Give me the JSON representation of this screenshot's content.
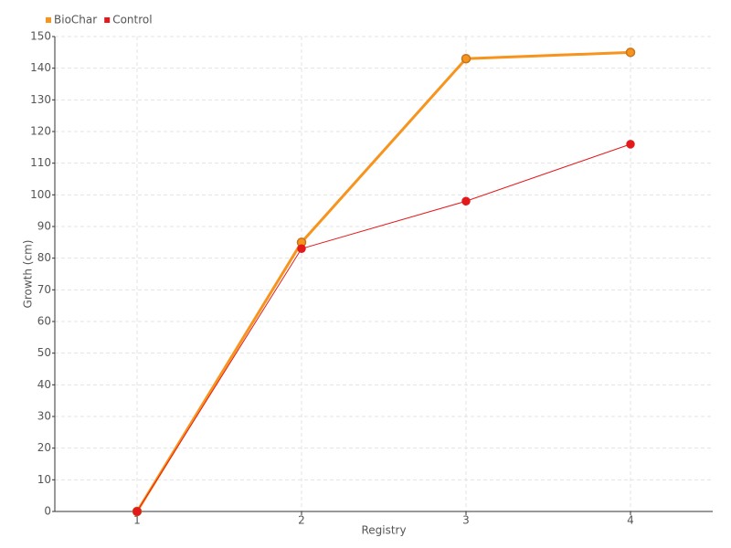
{
  "chart_data": {
    "type": "line",
    "categories": [
      "1",
      "2",
      "3",
      "4"
    ],
    "series": [
      {
        "name": "BioChar",
        "color": "#f7941d",
        "values": [
          0,
          85,
          143,
          145
        ]
      },
      {
        "name": "Control",
        "color": "#e31a1c",
        "values": [
          0,
          83,
          98,
          116
        ]
      }
    ],
    "x_label": "Registry",
    "y_label": "Growth (cm)",
    "ylim": [
      0,
      150
    ],
    "yticks": [
      0,
      10,
      20,
      30,
      40,
      50,
      60,
      70,
      80,
      90,
      100,
      110,
      120,
      130,
      140,
      150
    ],
    "grid": true,
    "legend": "top-left"
  }
}
